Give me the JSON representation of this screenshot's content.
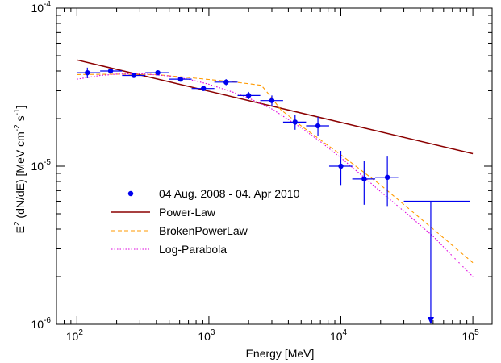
{
  "chart_data": {
    "type": "scatter",
    "xlabel": "Energy [MeV]",
    "ylabel": {
      "base": "E",
      "base_sup": "2",
      "mid": " (dN/dE) [MeV cm",
      "mid_sup": "-2",
      "mid2": " s",
      "end_sup": "-1",
      "end": "]"
    },
    "xscale": "log",
    "yscale": "log",
    "xlim": [
      70,
      140000
    ],
    "ylim": [
      1e-06,
      0.0001
    ],
    "x_ticks": [
      {
        "value": 100,
        "base": "10",
        "exp": "2"
      },
      {
        "value": 1000,
        "base": "10",
        "exp": "3"
      },
      {
        "value": 10000,
        "base": "10",
        "exp": "4"
      },
      {
        "value": 100000,
        "base": "10",
        "exp": "5"
      }
    ],
    "y_ticks": [
      {
        "value": 1e-06,
        "base": "10",
        "exp": "-6"
      },
      {
        "value": 1e-05,
        "base": "10",
        "exp": "-5"
      },
      {
        "value": 0.0001,
        "base": "10",
        "exp": "-4"
      }
    ],
    "grid": false,
    "legend_position": "center-left",
    "series": [
      {
        "name": "04 Aug. 2008 - 04. Apr 2010",
        "kind": "points",
        "color": "#0000ee",
        "points": [
          {
            "x": 120,
            "y": 3.9e-05,
            "xlo": 100,
            "xhi": 150,
            "ylo": 3.6e-05,
            "yhi": 4.2e-05
          },
          {
            "x": 180,
            "y": 4e-05,
            "xlo": 150,
            "xhi": 220,
            "ylo": 3.85e-05,
            "yhi": 4.15e-05
          },
          {
            "x": 270,
            "y": 3.75e-05,
            "xlo": 220,
            "xhi": 330,
            "ylo": 3.62e-05,
            "yhi": 3.88e-05
          },
          {
            "x": 410,
            "y": 3.9e-05,
            "xlo": 330,
            "xhi": 500,
            "ylo": 3.78e-05,
            "yhi": 4.02e-05
          },
          {
            "x": 610,
            "y": 3.55e-05,
            "xlo": 500,
            "xhi": 740,
            "ylo": 3.45e-05,
            "yhi": 3.65e-05
          },
          {
            "x": 910,
            "y": 3.1e-05,
            "xlo": 740,
            "xhi": 1100,
            "ylo": 3e-05,
            "yhi": 3.2e-05
          },
          {
            "x": 1350,
            "y": 3.4e-05,
            "xlo": 1100,
            "xhi": 1650,
            "ylo": 3.25e-05,
            "yhi": 3.55e-05
          },
          {
            "x": 2000,
            "y": 2.8e-05,
            "xlo": 1650,
            "xhi": 2450,
            "ylo": 2.65e-05,
            "yhi": 2.95e-05
          },
          {
            "x": 3000,
            "y": 2.6e-05,
            "xlo": 2450,
            "xhi": 3650,
            "ylo": 2.4e-05,
            "yhi": 2.8e-05
          },
          {
            "x": 4500,
            "y": 1.9e-05,
            "xlo": 3650,
            "xhi": 5450,
            "ylo": 1.7e-05,
            "yhi": 2.1e-05
          },
          {
            "x": 6700,
            "y": 1.8e-05,
            "xlo": 5450,
            "xhi": 8150,
            "ylo": 1.55e-05,
            "yhi": 2.05e-05
          },
          {
            "x": 10000,
            "y": 1e-05,
            "xlo": 8150,
            "xhi": 12200,
            "ylo": 7.6e-06,
            "yhi": 1.25e-05
          },
          {
            "x": 15000,
            "y": 8.3e-06,
            "xlo": 12200,
            "xhi": 18200,
            "ylo": 5.7e-06,
            "yhi": 1.08e-05
          },
          {
            "x": 22500,
            "y": 8.5e-06,
            "xlo": 18200,
            "xhi": 27200,
            "ylo": 5.6e-06,
            "yhi": 1.15e-05
          }
        ],
        "upper_limit": {
          "x": 48000,
          "y": 6e-06,
          "xlo": 30000,
          "xhi": 95000,
          "arrow_to": 1e-06
        }
      },
      {
        "name": "Power-Law",
        "kind": "line",
        "style": "solid",
        "color": "#8b0000",
        "x": [
          100,
          100000
        ],
        "y": [
          4.7e-05,
          1.2e-05
        ]
      },
      {
        "name": "BrokenPowerLaw",
        "kind": "line",
        "style": "dashed",
        "color": "#ff9900",
        "x": [
          100,
          200,
          400,
          800,
          1500,
          2500,
          3000,
          3500,
          5000,
          10000,
          20000,
          50000,
          100000
        ],
        "y": [
          3.8e-05,
          3.82e-05,
          3.8e-05,
          3.6e-05,
          3.42e-05,
          3.25e-05,
          2.7e-05,
          2.28e-05,
          1.8e-05,
          1.18e-05,
          7.6e-06,
          4e-06,
          2.45e-06
        ]
      },
      {
        "name": "Log-Parabola",
        "kind": "line",
        "style": "dotted",
        "color": "#dd00dd",
        "x": [
          100,
          150,
          200,
          300,
          500,
          700,
          1000,
          1500,
          2000,
          3000,
          5000,
          7000,
          10000,
          15000,
          20000,
          30000,
          50000,
          70000,
          100000
        ],
        "y": [
          3.55e-05,
          3.75e-05,
          3.82e-05,
          3.85e-05,
          3.72e-05,
          3.55e-05,
          3.3e-05,
          2.95e-05,
          2.7e-05,
          2.3e-05,
          1.75e-05,
          1.43e-05,
          1.13e-05,
          8.5e-06,
          6.9e-06,
          5.2e-06,
          3.6e-06,
          2.7e-06,
          2e-06
        ]
      }
    ]
  }
}
